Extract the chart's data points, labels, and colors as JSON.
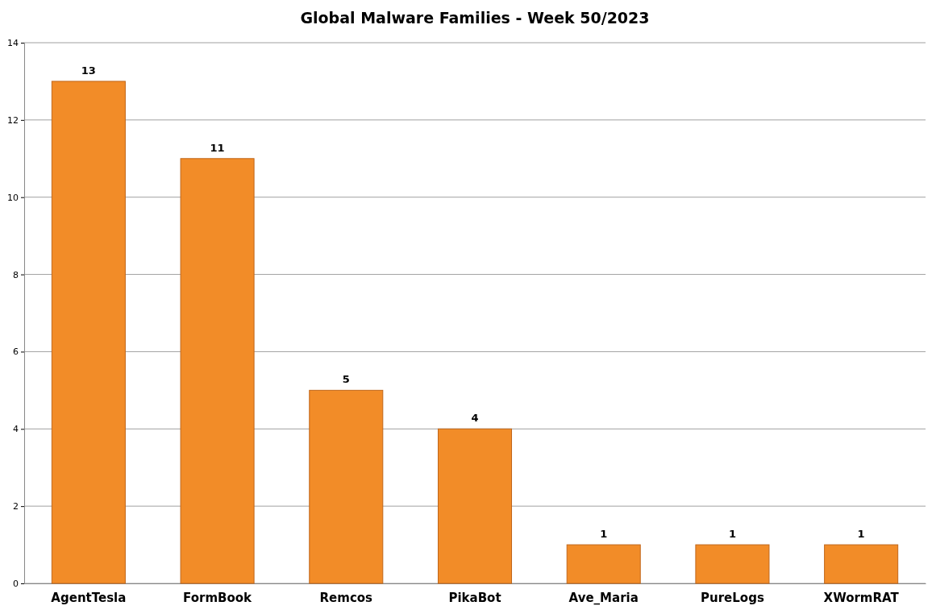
{
  "chart_data": {
    "type": "bar",
    "title": "Global Malware Families - Week 50/2023",
    "categories": [
      "AgentTesla",
      "FormBook",
      "Remcos",
      "PikaBot",
      "Ave_Maria",
      "PureLogs",
      "XWormRAT"
    ],
    "values": [
      13,
      11,
      5,
      4,
      1,
      1,
      1
    ],
    "color": "#f28c28",
    "ylim": [
      0,
      14
    ],
    "yticks": [
      0,
      2,
      4,
      6,
      8,
      10,
      12,
      14
    ],
    "grid": "y",
    "data_labels": true
  }
}
